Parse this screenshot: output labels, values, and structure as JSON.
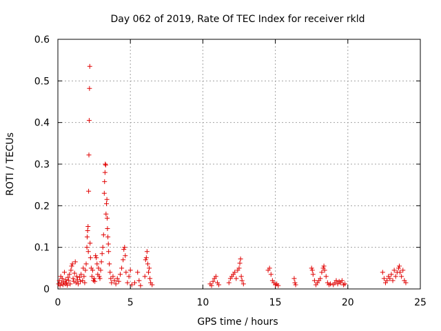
{
  "chart_data": {
    "type": "scatter",
    "title": "Day 062 of 2019, Rate Of TEC Index for receiver rkld",
    "xlabel": "GPS time / hours",
    "ylabel": "ROTI / TECUs",
    "xlim": [
      0,
      25
    ],
    "ylim": [
      0,
      0.6
    ],
    "xticks": [
      0,
      5,
      10,
      15,
      20,
      25
    ],
    "xtick_labels": [
      "0",
      "5",
      "10",
      "15",
      "20",
      "25"
    ],
    "yticks": [
      0,
      0.1,
      0.2,
      0.3,
      0.4,
      0.5,
      0.6
    ],
    "ytick_labels": [
      "0",
      "0.1",
      "0.2",
      "0.3",
      "0.4",
      "0.5",
      "0.6"
    ],
    "grid": true,
    "marker": "+",
    "color": "#e00000",
    "series": [
      {
        "name": "ROTI",
        "points": [
          [
            0.05,
            0.012
          ],
          [
            0.1,
            0.02
          ],
          [
            0.15,
            0.008
          ],
          [
            0.2,
            0.03
          ],
          [
            0.25,
            0.015
          ],
          [
            0.3,
            0.025
          ],
          [
            0.35,
            0.01
          ],
          [
            0.4,
            0.018
          ],
          [
            0.45,
            0.04
          ],
          [
            0.5,
            0.012
          ],
          [
            0.55,
            0.022
          ],
          [
            0.6,
            0.015
          ],
          [
            0.65,
            0.009
          ],
          [
            0.7,
            0.028
          ],
          [
            0.75,
            0.02
          ],
          [
            0.8,
            0.035
          ],
          [
            0.85,
            0.012
          ],
          [
            0.9,
            0.045
          ],
          [
            0.95,
            0.055
          ],
          [
            1.0,
            0.06
          ],
          [
            1.05,
            0.025
          ],
          [
            1.1,
            0.018
          ],
          [
            1.15,
            0.038
          ],
          [
            1.2,
            0.065
          ],
          [
            1.25,
            0.015
          ],
          [
            1.3,
            0.03
          ],
          [
            1.35,
            0.022
          ],
          [
            1.4,
            0.012
          ],
          [
            1.5,
            0.028
          ],
          [
            1.55,
            0.018
          ],
          [
            1.6,
            0.035
          ],
          [
            1.7,
            0.02
          ],
          [
            1.75,
            0.05
          ],
          [
            1.8,
            0.03
          ],
          [
            1.85,
            0.015
          ],
          [
            1.9,
            0.045
          ],
          [
            1.95,
            0.06
          ],
          [
            2.0,
            0.1
          ],
          [
            2.02,
            0.125
          ],
          [
            2.05,
            0.14
          ],
          [
            2.08,
            0.15
          ],
          [
            2.1,
            0.09
          ],
          [
            2.12,
            0.235
          ],
          [
            2.14,
            0.322
          ],
          [
            2.16,
            0.405
          ],
          [
            2.18,
            0.482
          ],
          [
            2.2,
            0.535
          ],
          [
            2.22,
            0.11
          ],
          [
            2.25,
            0.075
          ],
          [
            2.3,
            0.05
          ],
          [
            2.35,
            0.03
          ],
          [
            2.4,
            0.045
          ],
          [
            2.45,
            0.02
          ],
          [
            2.5,
            0.025
          ],
          [
            2.55,
            0.018
          ],
          [
            2.6,
            0.08
          ],
          [
            2.65,
            0.075
          ],
          [
            2.7,
            0.06
          ],
          [
            2.75,
            0.035
          ],
          [
            2.8,
            0.05
          ],
          [
            2.85,
            0.03
          ],
          [
            2.9,
            0.025
          ],
          [
            2.95,
            0.045
          ],
          [
            3.0,
            0.065
          ],
          [
            3.05,
            0.085
          ],
          [
            3.1,
            0.1
          ],
          [
            3.15,
            0.13
          ],
          [
            3.2,
            0.23
          ],
          [
            3.22,
            0.258
          ],
          [
            3.25,
            0.28
          ],
          [
            3.27,
            0.3
          ],
          [
            3.3,
            0.298
          ],
          [
            3.32,
            0.18
          ],
          [
            3.35,
            0.205
          ],
          [
            3.38,
            0.215
          ],
          [
            3.4,
            0.17
          ],
          [
            3.42,
            0.145
          ],
          [
            3.45,
            0.125
          ],
          [
            3.48,
            0.108
          ],
          [
            3.5,
            0.09
          ],
          [
            3.55,
            0.06
          ],
          [
            3.6,
            0.04
          ],
          [
            3.65,
            0.025
          ],
          [
            3.7,
            0.015
          ],
          [
            3.8,
            0.03
          ],
          [
            3.9,
            0.02
          ],
          [
            4.0,
            0.012
          ],
          [
            4.1,
            0.025
          ],
          [
            4.2,
            0.018
          ],
          [
            4.3,
            0.035
          ],
          [
            4.4,
            0.05
          ],
          [
            4.5,
            0.07
          ],
          [
            4.55,
            0.095
          ],
          [
            4.6,
            0.1
          ],
          [
            4.65,
            0.08
          ],
          [
            4.7,
            0.04
          ],
          [
            4.8,
            0.015
          ],
          [
            4.9,
            0.03
          ],
          [
            5.0,
            0.045
          ],
          [
            5.1,
            0.01
          ],
          [
            5.3,
            0.015
          ],
          [
            5.5,
            0.04
          ],
          [
            5.6,
            0.02
          ],
          [
            5.7,
            0.008
          ],
          [
            6.0,
            0.03
          ],
          [
            6.05,
            0.07
          ],
          [
            6.1,
            0.075
          ],
          [
            6.15,
            0.09
          ],
          [
            6.2,
            0.06
          ],
          [
            6.25,
            0.04
          ],
          [
            6.3,
            0.05
          ],
          [
            6.35,
            0.025
          ],
          [
            6.4,
            0.015
          ],
          [
            6.5,
            0.01
          ],
          [
            10.5,
            0.012
          ],
          [
            10.6,
            0.008
          ],
          [
            10.7,
            0.018
          ],
          [
            10.8,
            0.025
          ],
          [
            10.9,
            0.03
          ],
          [
            11.0,
            0.015
          ],
          [
            11.1,
            0.01
          ],
          [
            11.8,
            0.015
          ],
          [
            11.9,
            0.025
          ],
          [
            12.0,
            0.03
          ],
          [
            12.1,
            0.035
          ],
          [
            12.2,
            0.04
          ],
          [
            12.3,
            0.025
          ],
          [
            12.4,
            0.045
          ],
          [
            12.5,
            0.05
          ],
          [
            12.55,
            0.062
          ],
          [
            12.6,
            0.072
          ],
          [
            12.65,
            0.03
          ],
          [
            12.7,
            0.02
          ],
          [
            12.8,
            0.012
          ],
          [
            14.5,
            0.045
          ],
          [
            14.6,
            0.05
          ],
          [
            14.7,
            0.035
          ],
          [
            14.8,
            0.02
          ],
          [
            14.9,
            0.015
          ],
          [
            15.0,
            0.01
          ],
          [
            15.1,
            0.012
          ],
          [
            15.2,
            0.008
          ],
          [
            16.3,
            0.025
          ],
          [
            16.35,
            0.015
          ],
          [
            16.4,
            0.01
          ],
          [
            17.5,
            0.05
          ],
          [
            17.55,
            0.045
          ],
          [
            17.6,
            0.035
          ],
          [
            17.7,
            0.02
          ],
          [
            17.8,
            0.01
          ],
          [
            17.9,
            0.015
          ],
          [
            18.0,
            0.02
          ],
          [
            18.1,
            0.025
          ],
          [
            18.2,
            0.04
          ],
          [
            18.3,
            0.05
          ],
          [
            18.35,
            0.055
          ],
          [
            18.4,
            0.045
          ],
          [
            18.5,
            0.03
          ],
          [
            18.6,
            0.015
          ],
          [
            18.7,
            0.01
          ],
          [
            18.8,
            0.012
          ],
          [
            19.0,
            0.01
          ],
          [
            19.1,
            0.015
          ],
          [
            19.2,
            0.02
          ],
          [
            19.3,
            0.012
          ],
          [
            19.4,
            0.018
          ],
          [
            19.5,
            0.015
          ],
          [
            19.6,
            0.02
          ],
          [
            19.7,
            0.01
          ],
          [
            19.8,
            0.012
          ],
          [
            22.4,
            0.04
          ],
          [
            22.5,
            0.025
          ],
          [
            22.6,
            0.015
          ],
          [
            22.7,
            0.02
          ],
          [
            22.8,
            0.03
          ],
          [
            22.9,
            0.025
          ],
          [
            23.0,
            0.035
          ],
          [
            23.1,
            0.02
          ],
          [
            23.2,
            0.045
          ],
          [
            23.3,
            0.03
          ],
          [
            23.4,
            0.04
          ],
          [
            23.5,
            0.05
          ],
          [
            23.55,
            0.055
          ],
          [
            23.6,
            0.04
          ],
          [
            23.7,
            0.03
          ],
          [
            23.8,
            0.045
          ],
          [
            23.9,
            0.02
          ],
          [
            24.0,
            0.015
          ]
        ]
      }
    ]
  }
}
